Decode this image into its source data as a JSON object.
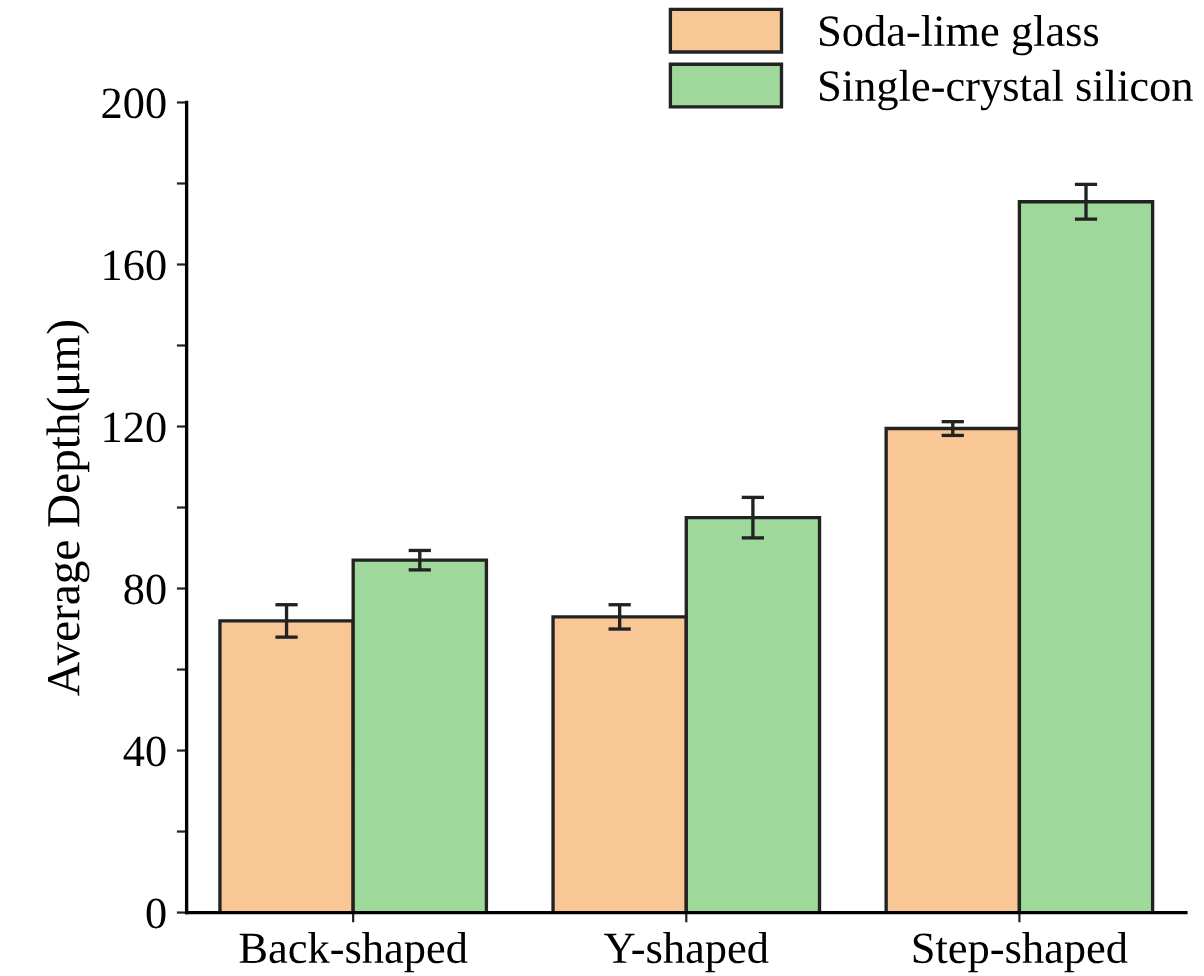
{
  "chart_data": {
    "type": "bar",
    "ylabel": "Average Depth(μm)",
    "categories": [
      "Back-shaped",
      "Y-shaped",
      "Step-shaped"
    ],
    "series": [
      {
        "name": "Soda-lime glass",
        "color": "#f9c795",
        "values": [
          72,
          73,
          119.5
        ],
        "errors": [
          4,
          3,
          1.7
        ]
      },
      {
        "name": "Single-crystal silicon",
        "color": "#9ed89b",
        "values": [
          87,
          97.5,
          175.5
        ],
        "errors": [
          2.4,
          5,
          4.3
        ]
      }
    ],
    "ylim": [
      0,
      200
    ],
    "yticks": [
      0,
      {
        "value": 20,
        "label": null
      },
      40,
      {
        "value": 60,
        "label": null
      },
      80,
      {
        "value": 100,
        "label": null
      },
      120,
      {
        "value": 140,
        "label": null
      },
      160,
      {
        "value": 180,
        "label": null
      },
      200
    ],
    "grid": false,
    "legend": "top right"
  }
}
